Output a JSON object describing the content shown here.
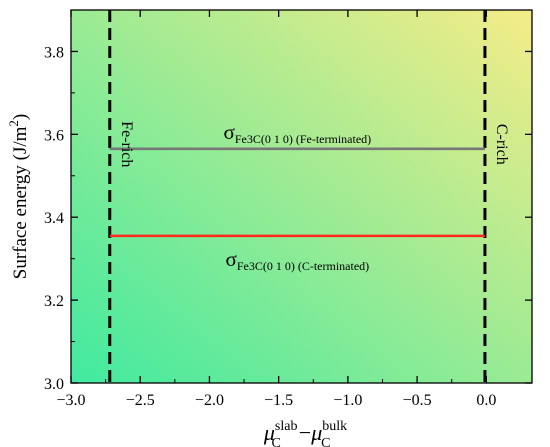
{
  "chart_data": {
    "type": "line",
    "xlabel": {
      "base": "μ",
      "sub": "C",
      "sup": "slab",
      "op": "−",
      "base2": "μ",
      "sub2": "C",
      "sup2": "bulk"
    },
    "ylabel": {
      "text": "Surface energy (J/m",
      "sup": "2",
      "close": ")"
    },
    "xlim": [
      -3.0,
      0.33
    ],
    "ylim": [
      3.0,
      3.9
    ],
    "xticks": [
      -3.0,
      -2.5,
      -2.0,
      -1.5,
      -1.0,
      -0.5,
      0.0
    ],
    "xtick_labels": [
      "−3.0",
      "−2.5",
      "−2.0",
      "−1.5",
      "−1.0",
      "−0.5",
      "0.0"
    ],
    "yticks": [
      3.0,
      3.2,
      3.4,
      3.6,
      3.8
    ],
    "ytick_labels": [
      "3.0",
      "3.2",
      "3.4",
      "3.6",
      "3.8"
    ],
    "series": [
      {
        "name_main": "σ",
        "name_sub": "Fe3C(0 1 0) (Fe-terminated)",
        "x": [
          -2.72,
          -0.01
        ],
        "y": [
          3.565,
          3.565
        ],
        "color": "#777777",
        "label_pos": "above"
      },
      {
        "name_main": "σ",
        "name_sub": "Fe3C(0 1 0) (C-terminated)",
        "x": [
          -2.72,
          -0.01
        ],
        "y": [
          3.355,
          3.355
        ],
        "color": "#ff2a1a",
        "label_pos": "below"
      }
    ],
    "vlines": [
      {
        "x": -2.72,
        "label": "Fe-rich",
        "style": "dashed",
        "label_side": "right"
      },
      {
        "x": -0.01,
        "label": "C-rich",
        "style": "dashed",
        "label_side": "right"
      }
    ],
    "background_gradient": [
      "#40eaa0",
      "#f5ec88"
    ],
    "grid": false
  }
}
